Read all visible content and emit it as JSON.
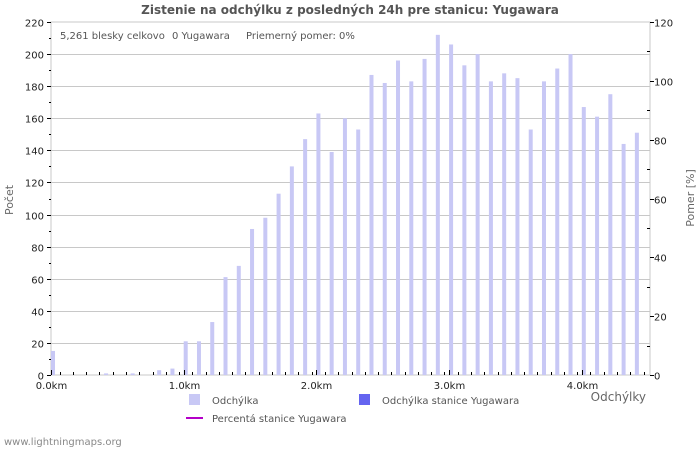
{
  "title": "Zistenie na odchýlku z posledných 24h pre stanicu: Yugawara",
  "stats": {
    "total": "5,261 blesky celkovo",
    "station": "0 Yugawara",
    "ratio": "Priemerný pomer: 0%"
  },
  "axes": {
    "left_title": "Počet",
    "right_title": "Pomer [%]",
    "x_title": "Odchýlky"
  },
  "legend": {
    "series1": "Odchýlka",
    "series2": "Odchýlka stanice Yugawara",
    "series3": "Percentá stanice Yugawara"
  },
  "footer": "www.lightningmaps.org",
  "colors": {
    "bar": "#c8c8f5",
    "station_bar": "#6464f0",
    "line": "#b400c8",
    "grid": "#c8c8c8"
  },
  "chart_data": {
    "type": "bar",
    "title": "Zistenie na odchýlku z posledných 24h pre stanicu: Yugawara",
    "xlabel": "Odchýlky",
    "ylabel": "Počet",
    "y2label": "Pomer [%]",
    "ylim": [
      0,
      220
    ],
    "y2lim": [
      0,
      120
    ],
    "yticks": [
      0,
      20,
      40,
      60,
      80,
      100,
      120,
      140,
      160,
      180,
      200,
      220
    ],
    "y2ticks": [
      0,
      20,
      40,
      60,
      80,
      100,
      120
    ],
    "xticks": [
      "0.0km",
      "1.0km",
      "2.0km",
      "3.0km",
      "4.0km"
    ],
    "grid": true,
    "legend_position": "bottom",
    "categories": [
      "0.0",
      "0.1",
      "0.2",
      "0.3",
      "0.4",
      "0.5",
      "0.6",
      "0.7",
      "0.8",
      "0.9",
      "1.0",
      "1.1",
      "1.2",
      "1.3",
      "1.4",
      "1.5",
      "1.6",
      "1.7",
      "1.8",
      "1.9",
      "2.0",
      "2.1",
      "2.2",
      "2.3",
      "2.4",
      "2.5",
      "2.6",
      "2.7",
      "2.8",
      "2.9",
      "3.0",
      "3.1",
      "3.2",
      "3.3",
      "3.4",
      "3.5",
      "3.6",
      "3.7",
      "3.8",
      "3.9",
      "4.0",
      "4.1",
      "4.2",
      "4.3",
      "4.4"
    ],
    "series": [
      {
        "name": "Odchýlka",
        "values": [
          15,
          0,
          0,
          0,
          1,
          0,
          1,
          0,
          3,
          4,
          21,
          21,
          33,
          61,
          68,
          91,
          98,
          113,
          130,
          147,
          163,
          139,
          160,
          153,
          187,
          182,
          196,
          183,
          197,
          212,
          206,
          193,
          200,
          183,
          188,
          185,
          153,
          183,
          191,
          200,
          167,
          161,
          175,
          144,
          151
        ]
      },
      {
        "name": "Odchýlka stanice Yugawara",
        "values": [
          0,
          0,
          0,
          0,
          0,
          0,
          0,
          0,
          0,
          0,
          0,
          0,
          0,
          0,
          0,
          0,
          0,
          0,
          0,
          0,
          0,
          0,
          0,
          0,
          0,
          0,
          0,
          0,
          0,
          0,
          0,
          0,
          0,
          0,
          0,
          0,
          0,
          0,
          0,
          0,
          0,
          0,
          0,
          0,
          0
        ]
      },
      {
        "name": "Percentá stanice Yugawara",
        "values": [
          0,
          0,
          0,
          0,
          0,
          0,
          0,
          0,
          0,
          0,
          0,
          0,
          0,
          0,
          0,
          0,
          0,
          0,
          0,
          0,
          0,
          0,
          0,
          0,
          0,
          0,
          0,
          0,
          0,
          0,
          0,
          0,
          0,
          0,
          0,
          0,
          0,
          0,
          0,
          0,
          0,
          0,
          0,
          0,
          0
        ]
      }
    ]
  }
}
